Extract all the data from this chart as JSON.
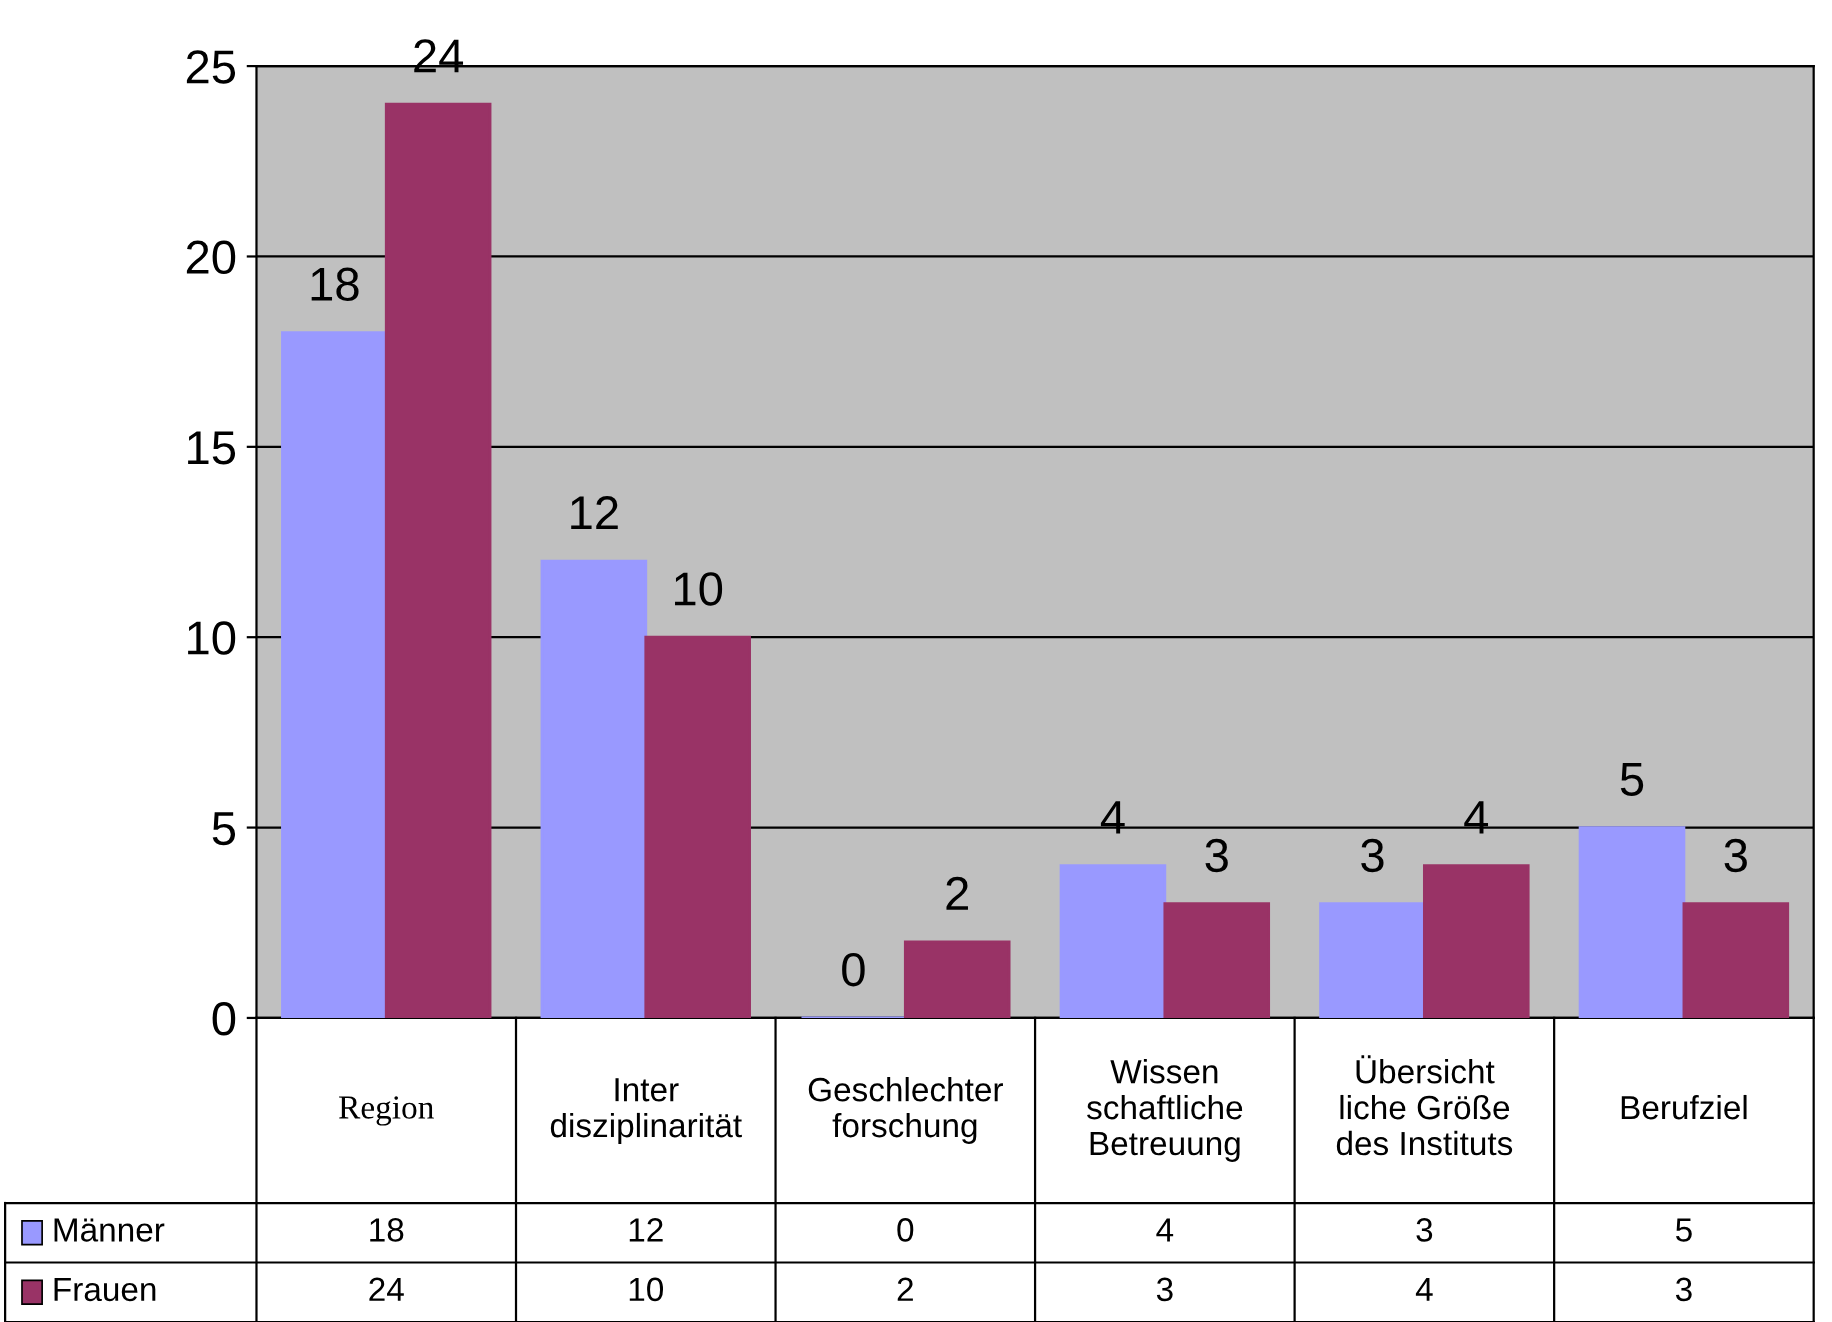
{
  "chart_data": {
    "type": "bar",
    "categories": [
      "Region",
      "Inter\ndisziplinarität",
      "Geschlechter\nforschung",
      "Wissen\nschaftliche\nBetreuung",
      "Übersicht\nliche Größe\ndes Instituts",
      "Berufziel"
    ],
    "series": [
      {
        "name": "Männer",
        "color": "#9999ff",
        "values": [
          18,
          12,
          0,
          4,
          3,
          5
        ],
        "value_labels": [
          "18",
          "12",
          "0",
          "4",
          "3",
          "5"
        ]
      },
      {
        "name": "Frauen",
        "color": "#993366",
        "values": [
          24,
          10,
          2,
          3,
          4,
          3
        ],
        "value_labels": [
          "24",
          "10",
          "2",
          "3",
          "4",
          "3"
        ]
      }
    ],
    "ylim": [
      0,
      25
    ],
    "yticks": [
      0,
      5,
      10,
      15,
      20,
      25
    ],
    "grid": "y",
    "legend": "bottom",
    "annotations": [
      "18",
      "12",
      "0",
      "4",
      "3",
      "5",
      "24",
      "10",
      "2",
      "3",
      "4",
      "3"
    ]
  }
}
